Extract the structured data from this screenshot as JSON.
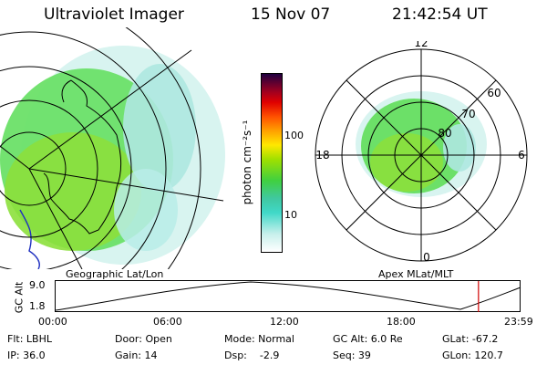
{
  "header": {
    "instrument": "Ultraviolet Imager",
    "date": "15 Nov 07",
    "time": "21:42:54 UT"
  },
  "geo_panel": {
    "caption": "Geographic Lat/Lon"
  },
  "colorbar": {
    "label": "photon cm⁻²s⁻¹",
    "tick_100": "100",
    "tick_10": "10",
    "colors": [
      "#ffffff",
      "#c8f0ec",
      "#40d8c8",
      "#40c8a0",
      "#40d040",
      "#a0e000",
      "#ffe800",
      "#ffa000",
      "#ff5000",
      "#e00000",
      "#a00020",
      "#600030",
      "#200040"
    ]
  },
  "polar_panel": {
    "caption": "Apex MLat/MLT",
    "mlt_12": "12",
    "mlt_18": "18",
    "mlt_6": "6",
    "mlt_0": "0",
    "lat_60": "60",
    "lat_70": "70",
    "lat_80": "80"
  },
  "altitude_plot": {
    "ylabel": "GC Alt",
    "y_top": "9.0",
    "y_bottom": "1.8",
    "x_ticks": [
      "00:00",
      "06:00",
      "12:00",
      "18:00",
      "23:59"
    ],
    "current_time_fraction": 0.9095
  },
  "footer": {
    "flt": "Flt: LBHL",
    "ip": "IP: 36.0",
    "door": "Door: Open",
    "gain": "Gain: 14",
    "mode": "Mode: Normal",
    "dsp": "Dsp:    -2.9",
    "gc_alt": "GC Alt: 6.0 Re",
    "seq": "Seq: 39",
    "glat": "GLat: -67.2",
    "glon": "GLon: 120.7"
  }
}
